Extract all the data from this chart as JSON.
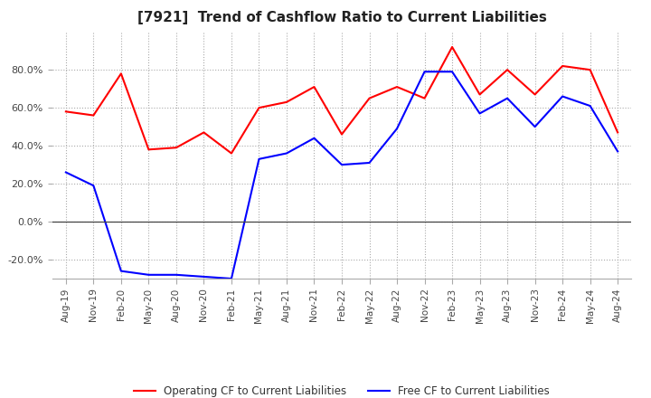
{
  "title": "[7921]  Trend of Cashflow Ratio to Current Liabilities",
  "x_labels": [
    "Aug-19",
    "Nov-19",
    "Feb-20",
    "May-20",
    "Aug-20",
    "Nov-20",
    "Feb-21",
    "May-21",
    "Aug-21",
    "Nov-21",
    "Feb-22",
    "May-22",
    "Aug-22",
    "Nov-22",
    "Feb-23",
    "May-23",
    "Aug-23",
    "Nov-23",
    "Feb-24",
    "May-24",
    "Aug-24"
  ],
  "operating_cf": [
    0.58,
    0.56,
    0.78,
    0.38,
    0.39,
    0.47,
    0.36,
    0.6,
    0.63,
    0.71,
    0.46,
    0.65,
    0.71,
    0.65,
    0.92,
    0.67,
    0.8,
    0.67,
    0.82,
    0.8,
    0.47
  ],
  "free_cf": [
    0.26,
    0.19,
    -0.26,
    -0.28,
    -0.28,
    -0.29,
    -0.3,
    0.33,
    0.36,
    0.44,
    0.3,
    0.31,
    0.49,
    0.79,
    0.79,
    0.57,
    0.65,
    0.5,
    0.66,
    0.61,
    0.37
  ],
  "operating_color": "#FF0000",
  "free_color": "#0000FF",
  "ylim": [
    -0.3,
    1.0
  ],
  "yticks": [
    -0.2,
    0.0,
    0.2,
    0.4,
    0.6,
    0.8
  ],
  "background_color": "#ffffff",
  "grid_color": "#aaaaaa",
  "title_fontsize": 11,
  "legend_labels": [
    "Operating CF to Current Liabilities",
    "Free CF to Current Liabilities"
  ]
}
